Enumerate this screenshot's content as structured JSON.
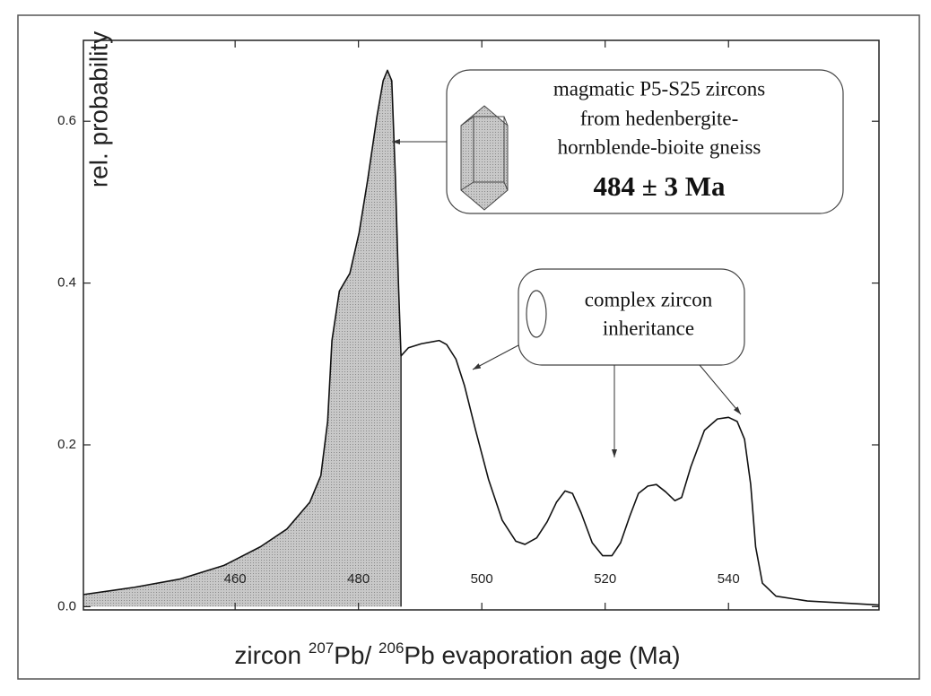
{
  "chart_data": {
    "type": "line",
    "y_label": "rel. probability",
    "x_label_parts": [
      "zircon ",
      "207",
      "Pb/ ",
      "206",
      "Pb evaporation age (Ma)"
    ],
    "x": [
      435.4,
      443.7,
      451.0,
      458.2,
      464.1,
      468.4,
      472.1,
      473.9,
      475.0,
      475.7,
      476.9,
      478.6,
      480.1,
      481.5,
      483.0,
      484.0,
      484.7,
      485.4,
      486.0,
      486.5,
      486.9,
      488.1,
      490.2,
      493.1,
      494.3,
      495.8,
      497.2,
      499.0,
      501.1,
      503.3,
      505.5,
      507.0,
      508.9,
      510.6,
      512.1,
      513.5,
      514.7,
      516.1,
      517.9,
      519.6,
      521.1,
      522.5,
      524.0,
      525.4,
      526.9,
      528.3,
      529.8,
      531.3,
      532.4,
      533.9,
      536.1,
      538.2,
      540.0,
      541.4,
      542.6,
      543.6,
      544.4,
      545.5,
      547.7,
      552.8,
      564.4
    ],
    "values": [
      0.015,
      0.024,
      0.034,
      0.051,
      0.074,
      0.096,
      0.129,
      0.162,
      0.229,
      0.329,
      0.39,
      0.412,
      0.462,
      0.528,
      0.606,
      0.65,
      0.663,
      0.65,
      0.528,
      0.395,
      0.31,
      0.32,
      0.325,
      0.329,
      0.324,
      0.306,
      0.273,
      0.218,
      0.157,
      0.107,
      0.081,
      0.077,
      0.085,
      0.105,
      0.129,
      0.143,
      0.14,
      0.116,
      0.079,
      0.063,
      0.063,
      0.079,
      0.112,
      0.14,
      0.149,
      0.151,
      0.142,
      0.131,
      0.135,
      0.173,
      0.218,
      0.232,
      0.234,
      0.229,
      0.207,
      0.151,
      0.074,
      0.029,
      0.013,
      0.007,
      0.002
    ],
    "color": "#111111",
    "shade_color": "#b5b5b5",
    "shade_xmax": 486.9,
    "xlim": [
      435.4,
      564.4
    ],
    "ylim": [
      -0.004,
      0.7
    ],
    "xticks": [
      460,
      480,
      500,
      520,
      540
    ],
    "yticks": [
      {
        "value": 0,
        "label": "0.0"
      },
      0.2,
      0.4,
      0.6
    ],
    "annotations": [
      {
        "lines": [
          "magmatic P5-S25 zircons",
          "from hedenbergite-",
          "hornblende-bioite gneiss"
        ],
        "highlight": "484 ± 3 Ma"
      },
      {
        "lines": [
          "complex zircon",
          "inheritance"
        ]
      }
    ]
  }
}
